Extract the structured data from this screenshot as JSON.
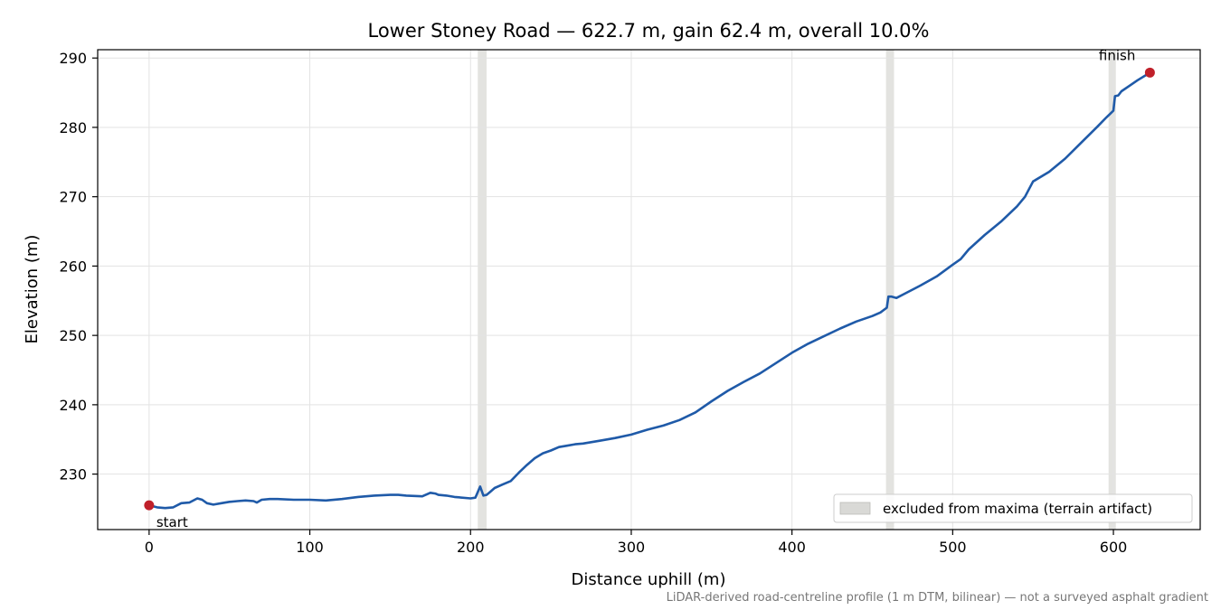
{
  "chart_data": {
    "type": "line",
    "title": "Lower Stoney Road — 622.7 m, gain 62.4 m, overall 10.0%",
    "xlabel": "Distance uphill (m)",
    "ylabel": "Elevation (m)",
    "xlim": [
      -32,
      654
    ],
    "ylim": [
      222,
      291.2
    ],
    "xticks": [
      0,
      100,
      200,
      300,
      400,
      500,
      600
    ],
    "yticks": [
      230,
      240,
      250,
      260,
      270,
      280,
      290
    ],
    "grid": true,
    "line_color": "#1f5aa8",
    "marker_color": "#c0202a",
    "band_color": "#d9d9d6",
    "series": [
      {
        "x": [
          0,
          5,
          10,
          15,
          20,
          25,
          30,
          33,
          36,
          40,
          45,
          50,
          55,
          60,
          65,
          67,
          70,
          75,
          80,
          90,
          100,
          110,
          120,
          130,
          140,
          150,
          155,
          160,
          170,
          175,
          178,
          180,
          185,
          190,
          200,
          203,
          206,
          208,
          210,
          212,
          215,
          220,
          225,
          230,
          235,
          240,
          245,
          250,
          255,
          260,
          265,
          270,
          275,
          280,
          290,
          300,
          310,
          320,
          330,
          340,
          350,
          360,
          370,
          380,
          390,
          400,
          410,
          420,
          430,
          440,
          450,
          455,
          459,
          460,
          462,
          465,
          470,
          480,
          490,
          500,
          505,
          510,
          520,
          530,
          540,
          545,
          550,
          560,
          570,
          580,
          590,
          595,
          600,
          601,
          603,
          605,
          610,
          615,
          620,
          622.7
        ],
        "y": [
          225.5,
          225.2,
          225.1,
          225.2,
          225.8,
          225.9,
          226.5,
          226.3,
          225.8,
          225.6,
          225.8,
          226.0,
          226.1,
          226.2,
          226.1,
          225.9,
          226.3,
          226.4,
          226.4,
          226.3,
          226.3,
          226.2,
          226.4,
          226.7,
          226.9,
          227.0,
          227.0,
          226.9,
          226.8,
          227.3,
          227.2,
          227.0,
          226.9,
          226.7,
          226.5,
          226.6,
          228.2,
          226.9,
          227.0,
          227.4,
          228.0,
          228.5,
          229.0,
          230.2,
          231.3,
          232.3,
          233.0,
          233.4,
          233.9,
          234.1,
          234.3,
          234.4,
          234.6,
          234.8,
          235.2,
          235.7,
          236.4,
          237.0,
          237.8,
          238.9,
          240.5,
          242.0,
          243.3,
          244.5,
          246.0,
          247.5,
          248.8,
          249.9,
          251.0,
          252.0,
          252.8,
          253.3,
          254.0,
          255.6,
          255.6,
          255.4,
          256.0,
          257.2,
          258.5,
          260.2,
          261.0,
          262.4,
          264.5,
          266.4,
          268.6,
          270.0,
          272.2,
          273.6,
          275.5,
          277.8,
          280.1,
          281.3,
          282.4,
          284.5,
          284.6,
          285.2,
          286.0,
          286.8,
          287.5,
          287.9
        ]
      }
    ],
    "excluded_ranges": [
      [
        204.5,
        210
      ],
      [
        458.5,
        463.5
      ],
      [
        597,
        601.5
      ]
    ],
    "points": [
      {
        "label": "start",
        "x": 0,
        "y": 225.5
      },
      {
        "label": "finish",
        "x": 622.7,
        "y": 287.9
      }
    ],
    "legend": {
      "position": "lower-right",
      "entries": [
        "excluded from maxima (terrain artifact)"
      ]
    },
    "footnote": "LiDAR-derived road-centreline profile (1 m DTM, bilinear) — not a surveyed asphalt gradient"
  }
}
